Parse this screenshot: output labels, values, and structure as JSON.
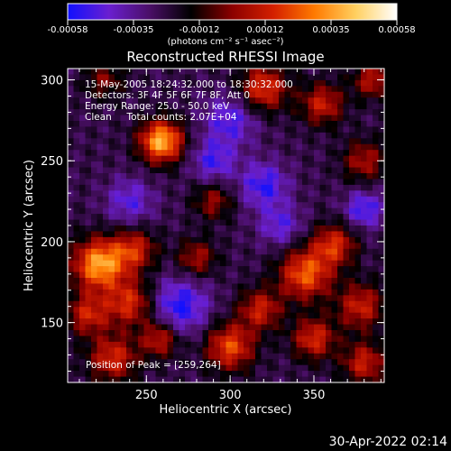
{
  "chart_data": {
    "type": "heatmap",
    "title": "Reconstructed RHESSI Image",
    "xlabel": "Heliocentric X (arcsec)",
    "ylabel": "Heliocentric Y (arcsec)",
    "xlim": [
      203,
      392
    ],
    "ylim": [
      113,
      307
    ],
    "x_ticks": [
      250,
      300,
      350
    ],
    "y_ticks": [
      150,
      200,
      250,
      300
    ],
    "grid": false,
    "colorbar": {
      "units": "(photons cm⁻² s⁻¹ asec⁻²)",
      "ticks": [
        "-0.00058",
        "-0.00035",
        "-0.00012",
        "0.00012",
        "0.00035",
        "0.00058"
      ],
      "range": [
        -0.00058,
        0.00058
      ],
      "colors": [
        "#1010ff",
        "#6a1fd0",
        "#4a0f66",
        "#000000",
        "#8c0000",
        "#d42000",
        "#ff7a00",
        "#ffd060",
        "#ffffff"
      ]
    },
    "annotations": [
      "15-May-2005 18:24:32.000 to 18:30:32.000",
      "Detectors: 3F 4F 5F 6F 7F 8F, Att 0",
      "Energy Range: 25.0 - 50.0 keV",
      "Clean     Total counts: 2.07E+04"
    ],
    "peak_label": "Position of Peak = [259,264]",
    "peak_position": [
      259,
      264
    ],
    "sources": [
      {
        "x": 259,
        "y": 262,
        "intensity": 1.0,
        "sigma": 9
      },
      {
        "x": 222,
        "y": 186,
        "intensity": 0.95,
        "sigma": 11
      },
      {
        "x": 215,
        "y": 155,
        "intensity": 0.55,
        "sigma": 9
      },
      {
        "x": 243,
        "y": 195,
        "intensity": 0.55,
        "sigma": 9
      },
      {
        "x": 240,
        "y": 162,
        "intensity": 0.6,
        "sigma": 10
      },
      {
        "x": 258,
        "y": 140,
        "intensity": 0.55,
        "sigma": 8
      },
      {
        "x": 230,
        "y": 128,
        "intensity": 0.6,
        "sigma": 10
      },
      {
        "x": 300,
        "y": 135,
        "intensity": 0.7,
        "sigma": 10
      },
      {
        "x": 318,
        "y": 158,
        "intensity": 0.55,
        "sigma": 9
      },
      {
        "x": 345,
        "y": 180,
        "intensity": 0.75,
        "sigma": 11
      },
      {
        "x": 362,
        "y": 198,
        "intensity": 0.6,
        "sigma": 9
      },
      {
        "x": 378,
        "y": 160,
        "intensity": 0.55,
        "sigma": 10
      },
      {
        "x": 350,
        "y": 140,
        "intensity": 0.6,
        "sigma": 9
      },
      {
        "x": 380,
        "y": 125,
        "intensity": 0.55,
        "sigma": 9
      },
      {
        "x": 320,
        "y": 295,
        "intensity": 0.65,
        "sigma": 10
      },
      {
        "x": 355,
        "y": 285,
        "intensity": 0.55,
        "sigma": 9
      },
      {
        "x": 385,
        "y": 300,
        "intensity": 0.5,
        "sigma": 8
      },
      {
        "x": 380,
        "y": 250,
        "intensity": 0.45,
        "sigma": 9
      },
      {
        "x": 290,
        "y": 225,
        "intensity": 0.4,
        "sigma": 8
      },
      {
        "x": 280,
        "y": 190,
        "intensity": 0.45,
        "sigma": 8
      },
      {
        "x": 225,
        "y": 300,
        "intensity": 0.35,
        "sigma": 8
      },
      {
        "x": 320,
        "y": 235,
        "intensity": -0.45,
        "sigma": 10
      },
      {
        "x": 270,
        "y": 160,
        "intensity": -0.5,
        "sigma": 12
      },
      {
        "x": 300,
        "y": 275,
        "intensity": -0.4,
        "sigma": 11
      },
      {
        "x": 240,
        "y": 225,
        "intensity": -0.35,
        "sigma": 10
      },
      {
        "x": 380,
        "y": 220,
        "intensity": -0.45,
        "sigma": 8
      },
      {
        "x": 290,
        "y": 250,
        "intensity": -0.4,
        "sigma": 9
      },
      {
        "x": 330,
        "y": 210,
        "intensity": -0.35,
        "sigma": 9
      }
    ]
  },
  "footer": {
    "timestamp": "30-Apr-2022 02:14"
  }
}
